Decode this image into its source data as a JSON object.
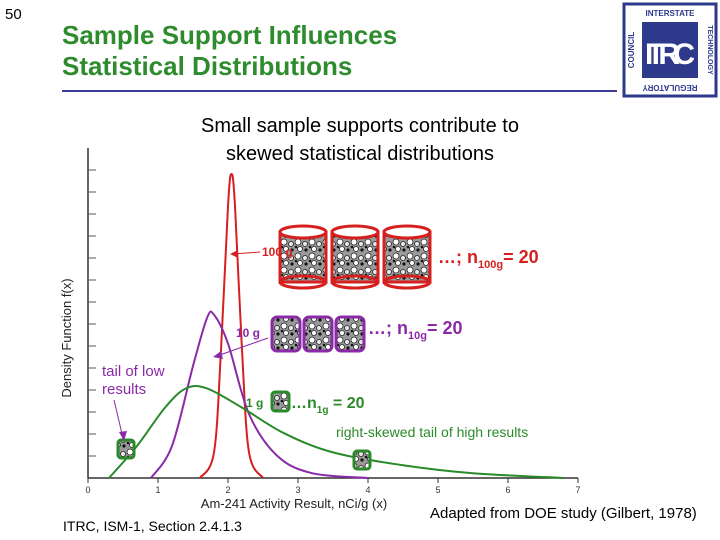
{
  "slide": {
    "number": "50",
    "title_line1": "Sample Support Influences",
    "title_line2": "Statistical Distributions",
    "subtitle_line1": "Small sample supports contribute to",
    "subtitle_line2": "skewed statistical distributions",
    "footer_left": "ITRC, ISM-1, Section 2.4.1.3",
    "footer_right": "Adapted from DOE study (Gilbert, 1978)"
  },
  "logo": {
    "main": "ITRC",
    "top_text": "INTERSTATE",
    "right_text": "TECHNOLOGY",
    "bottom_text": "REGULATORY",
    "left_text": "COUNCIL"
  },
  "colors": {
    "title": "#2e8b2e",
    "rule": "#3b3b9a",
    "red": "#d62020",
    "purple": "#8a2aa8",
    "green": "#2a8a2a",
    "axis": "#333333"
  },
  "chart_data": {
    "type": "line",
    "xlabel": "Am-241 Activity Result, nCi/g (x)",
    "ylabel": "Density Function f(x)",
    "x_ticks": [
      "0",
      "1",
      "2",
      "3",
      "4",
      "5",
      "6",
      "7"
    ],
    "xlim": [
      0,
      7
    ],
    "series": [
      {
        "name": "100 g",
        "x": [
          1.6,
          1.8,
          1.9,
          2.0,
          2.05,
          2.1,
          2.2,
          2.3,
          2.5
        ],
        "y": [
          0.0,
          0.08,
          0.4,
          0.85,
          0.95,
          0.85,
          0.4,
          0.08,
          0.0
        ]
      },
      {
        "name": "10 g",
        "x": [
          0.9,
          1.2,
          1.5,
          1.7,
          1.8,
          2.0,
          2.3,
          2.7,
          3.2,
          4.0
        ],
        "y": [
          0.0,
          0.1,
          0.35,
          0.5,
          0.51,
          0.42,
          0.2,
          0.07,
          0.015,
          0.0
        ]
      },
      {
        "name": "1 g",
        "x": [
          0.3,
          0.7,
          1.1,
          1.4,
          1.7,
          2.2,
          2.8,
          3.5,
          4.5,
          5.5,
          6.8
        ],
        "y": [
          0.0,
          0.1,
          0.22,
          0.28,
          0.28,
          0.22,
          0.14,
          0.08,
          0.04,
          0.015,
          0.0
        ]
      }
    ],
    "annotations": {
      "label_100g": "100 g",
      "label_10g": "10 g",
      "label_1g": "1 g",
      "n100_prefix": "…; n",
      "n100_sub": "100g",
      "n100_suffix": "= 20",
      "n10_prefix": "…; n",
      "n10_sub": "10g",
      "n10_suffix": "= 20",
      "n1_prefix": "…n",
      "n1_sub": "1g",
      "n1_suffix": " = 20",
      "tail_low_1": "tail of low",
      "tail_low_2": "results",
      "tail_high": "right-skewed tail of high results"
    }
  }
}
